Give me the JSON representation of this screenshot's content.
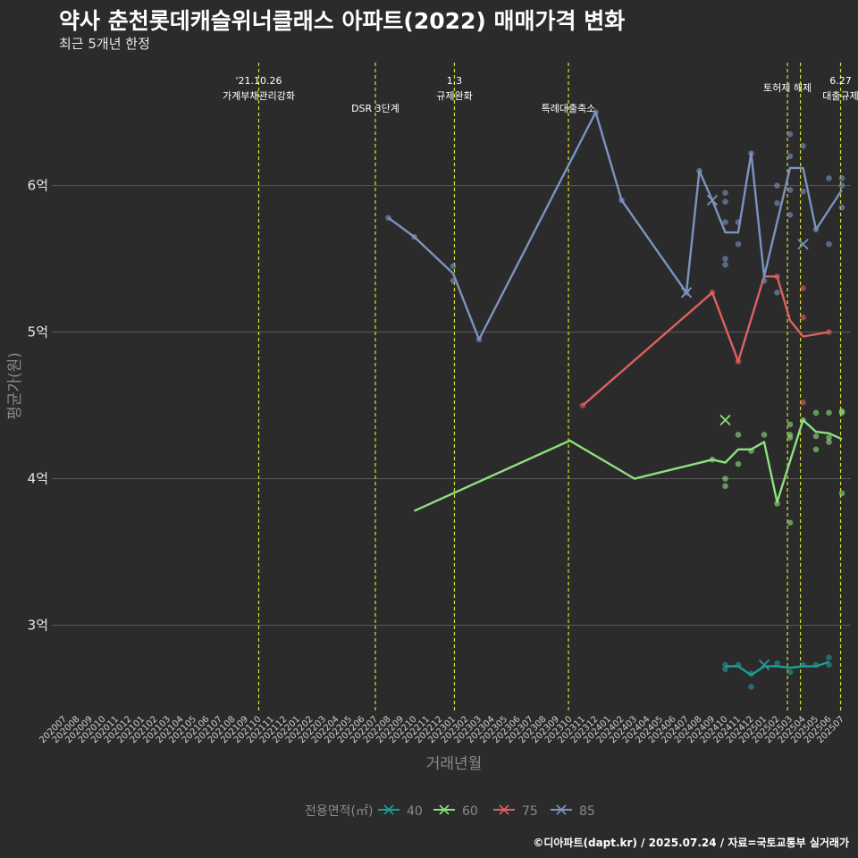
{
  "title": "약사 춘천롯데캐슬위너클래스 아파트(2022) 매매가격 변화",
  "subtitle": "최근 5개년 한정",
  "caption": "©디아파트(dapt.kr) / 2025.07.24 / 자료=국토교통부 실거래가",
  "chart_data": {
    "type": "line",
    "xlabel": "거래년월",
    "ylabel": "평균가(원)",
    "ylim": [
      2.4,
      6.9
    ],
    "yticks": [
      {
        "v": 3,
        "label": "3억"
      },
      {
        "v": 4,
        "label": "4억"
      },
      {
        "v": 5,
        "label": "5억"
      },
      {
        "v": 6,
        "label": "6억"
      }
    ],
    "grid": true,
    "legend": {
      "title": "전용면적(㎡)",
      "position": "bottom"
    },
    "months": [
      "202007",
      "202008",
      "202009",
      "202010",
      "202011",
      "202012",
      "202101",
      "202102",
      "202103",
      "202104",
      "202105",
      "202106",
      "202107",
      "202108",
      "202109",
      "202110",
      "202111",
      "202112",
      "202201",
      "202202",
      "202203",
      "202204",
      "202205",
      "202206",
      "202207",
      "202208",
      "202209",
      "202210",
      "202211",
      "202212",
      "202301",
      "202302",
      "202303",
      "202304",
      "202305",
      "202306",
      "202307",
      "202308",
      "202309",
      "202310",
      "202311",
      "202312",
      "202401",
      "202402",
      "202403",
      "202404",
      "202405",
      "202406",
      "202407",
      "202408",
      "202409",
      "202410",
      "202411",
      "202412",
      "202501",
      "202502",
      "202503",
      "202504",
      "202505",
      "202506",
      "202507"
    ],
    "events": [
      {
        "month": "202110",
        "offset": 0.0,
        "labels": [
          "'21.10.26",
          "가계부채관리강화"
        ],
        "row": 0
      },
      {
        "month": "202207",
        "offset": 0.0,
        "labels": [
          "DSR 3단계"
        ],
        "row": 1
      },
      {
        "month": "202301",
        "offset": 0.1,
        "labels": [
          "1.3",
          "규제완화"
        ],
        "row": 0
      },
      {
        "month": "202309",
        "offset": 0.9,
        "labels": [
          "특례대출축소"
        ],
        "row": 1
      },
      {
        "month": "202502",
        "offset": 0.8,
        "labels": [
          "토허제 해제"
        ],
        "row": 0
      },
      {
        "month": "202503",
        "offset": 0.8,
        "labels": [],
        "row": 0
      },
      {
        "month": "202506",
        "offset": 0.9,
        "labels": [
          "6.27",
          "대출규제"
        ],
        "row": 0
      }
    ],
    "series": [
      {
        "name": "40",
        "color": "#1e9c96",
        "line": [
          [
            "202410",
            2.72
          ],
          [
            "202411",
            2.72
          ],
          [
            "202412",
            2.66
          ],
          [
            "202501",
            2.72
          ],
          [
            "202502",
            2.72
          ],
          [
            "202503",
            2.71
          ],
          [
            "202504",
            2.72
          ],
          [
            "202505",
            2.72
          ],
          [
            "202506",
            2.75
          ]
        ],
        "points": [
          [
            "202410",
            2.73
          ],
          [
            "202410",
            2.7
          ],
          [
            "202411",
            2.73
          ],
          [
            "202412",
            2.58
          ],
          [
            "202412",
            2.67
          ],
          [
            "202502",
            2.74
          ],
          [
            "202503",
            2.68
          ],
          [
            "202504",
            2.73
          ],
          [
            "202505",
            2.73
          ],
          [
            "202506",
            2.78
          ],
          [
            "202506",
            2.73
          ]
        ],
        "crosses": [
          [
            "202501",
            2.73
          ]
        ]
      },
      {
        "name": "60",
        "color": "#8ee07e",
        "line": [
          [
            "202210",
            3.78
          ],
          [
            "202310",
            4.26
          ],
          [
            "202403",
            4.0
          ],
          [
            "202409",
            4.13
          ],
          [
            "202410",
            4.11
          ],
          [
            "202411",
            4.2
          ],
          [
            "202412",
            4.2
          ],
          [
            "202501",
            4.25
          ],
          [
            "202502",
            3.84
          ],
          [
            "202503",
            4.12
          ],
          [
            "202504",
            4.4
          ],
          [
            "202505",
            4.32
          ],
          [
            "202506",
            4.31
          ],
          [
            "202507",
            4.27
          ]
        ],
        "points": [
          [
            "202409",
            4.13
          ],
          [
            "202410",
            4.0
          ],
          [
            "202410",
            3.95
          ],
          [
            "202411",
            4.3
          ],
          [
            "202411",
            4.1
          ],
          [
            "202412",
            4.19
          ],
          [
            "202501",
            4.3
          ],
          [
            "202502",
            3.83
          ],
          [
            "202503",
            4.37
          ],
          [
            "202503",
            4.28
          ],
          [
            "202503",
            4.3
          ],
          [
            "202503",
            3.7
          ],
          [
            "202504",
            4.4
          ],
          [
            "202505",
            4.45
          ],
          [
            "202505",
            4.29
          ],
          [
            "202505",
            4.2
          ],
          [
            "202506",
            4.45
          ],
          [
            "202506",
            4.28
          ],
          [
            "202506",
            4.25
          ],
          [
            "202507",
            4.45
          ],
          [
            "202507",
            4.46
          ],
          [
            "202507",
            3.9
          ]
        ],
        "crosses": [
          [
            "202410",
            4.4
          ]
        ]
      },
      {
        "name": "75",
        "color": "#e06060",
        "line": [
          [
            "202311",
            4.5
          ],
          [
            "202409",
            5.27
          ],
          [
            "202411",
            4.8
          ],
          [
            "202501",
            5.38
          ],
          [
            "202502",
            5.38
          ],
          [
            "202503",
            5.08
          ],
          [
            "202504",
            4.97
          ],
          [
            "202506",
            5.0
          ]
        ],
        "points": [
          [
            "202311",
            4.5
          ],
          [
            "202409",
            5.27
          ],
          [
            "202411",
            4.8
          ],
          [
            "202502",
            5.38
          ],
          [
            "202504",
            5.3
          ],
          [
            "202504",
            5.1
          ],
          [
            "202504",
            4.52
          ],
          [
            "202506",
            5.0
          ]
        ],
        "crosses": []
      },
      {
        "name": "85",
        "color": "#7b94bf",
        "line": [
          [
            "202208",
            5.78
          ],
          [
            "202210",
            5.65
          ],
          [
            "202301",
            5.4
          ],
          [
            "202303",
            4.95
          ],
          [
            "202312",
            6.5
          ],
          [
            "202402",
            5.9
          ],
          [
            "202407",
            5.27
          ],
          [
            "202408",
            6.1
          ],
          [
            "202409",
            5.9
          ],
          [
            "202410",
            5.68
          ],
          [
            "202411",
            5.68
          ],
          [
            "202412",
            6.22
          ],
          [
            "202501",
            5.38
          ],
          [
            "202503",
            6.12
          ],
          [
            "202504",
            6.12
          ],
          [
            "202505",
            5.7
          ],
          [
            "202507",
            5.97
          ]
        ],
        "points": [
          [
            "202208",
            5.78
          ],
          [
            "202210",
            5.65
          ],
          [
            "202301",
            5.45
          ],
          [
            "202301",
            5.35
          ],
          [
            "202303",
            4.95
          ],
          [
            "202312",
            6.5
          ],
          [
            "202402",
            5.9
          ],
          [
            "202407",
            5.27
          ],
          [
            "202408",
            6.1
          ],
          [
            "202410",
            5.95
          ],
          [
            "202410",
            5.89
          ],
          [
            "202410",
            5.75
          ],
          [
            "202410",
            5.5
          ],
          [
            "202410",
            5.46
          ],
          [
            "202411",
            5.75
          ],
          [
            "202411",
            5.6
          ],
          [
            "202412",
            6.22
          ],
          [
            "202501",
            5.35
          ],
          [
            "202502",
            6.0
          ],
          [
            "202502",
            5.88
          ],
          [
            "202502",
            5.27
          ],
          [
            "202503",
            6.35
          ],
          [
            "202503",
            6.2
          ],
          [
            "202503",
            5.97
          ],
          [
            "202503",
            5.8
          ],
          [
            "202504",
            6.27
          ],
          [
            "202504",
            5.96
          ],
          [
            "202505",
            5.7
          ],
          [
            "202506",
            6.05
          ],
          [
            "202506",
            5.6
          ],
          [
            "202507",
            6.05
          ],
          [
            "202507",
            6.0
          ],
          [
            "202507",
            5.85
          ]
        ],
        "crosses": [
          [
            "202407",
            5.27
          ],
          [
            "202409",
            5.9
          ],
          [
            "202504",
            5.6
          ]
        ]
      }
    ]
  }
}
